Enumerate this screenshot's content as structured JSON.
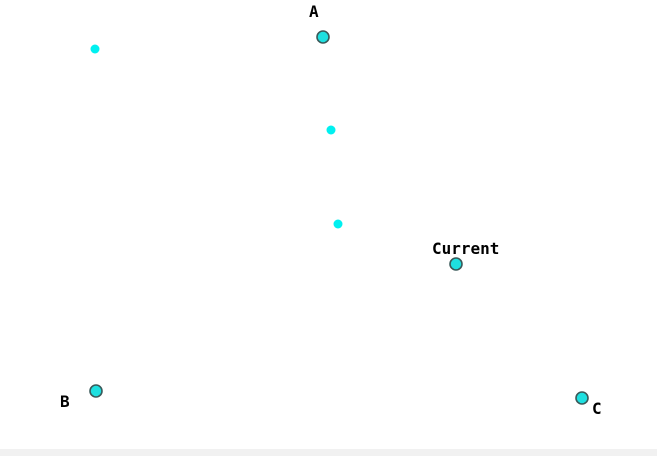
{
  "colors": {
    "point_fill": "#1ee0e0",
    "point_stroke": "#3a5a5a",
    "dot_fill": "#00f0f0",
    "label": "#000000"
  },
  "labels": {
    "a": "A",
    "b": "B",
    "c": "C",
    "current": "Current"
  }
}
